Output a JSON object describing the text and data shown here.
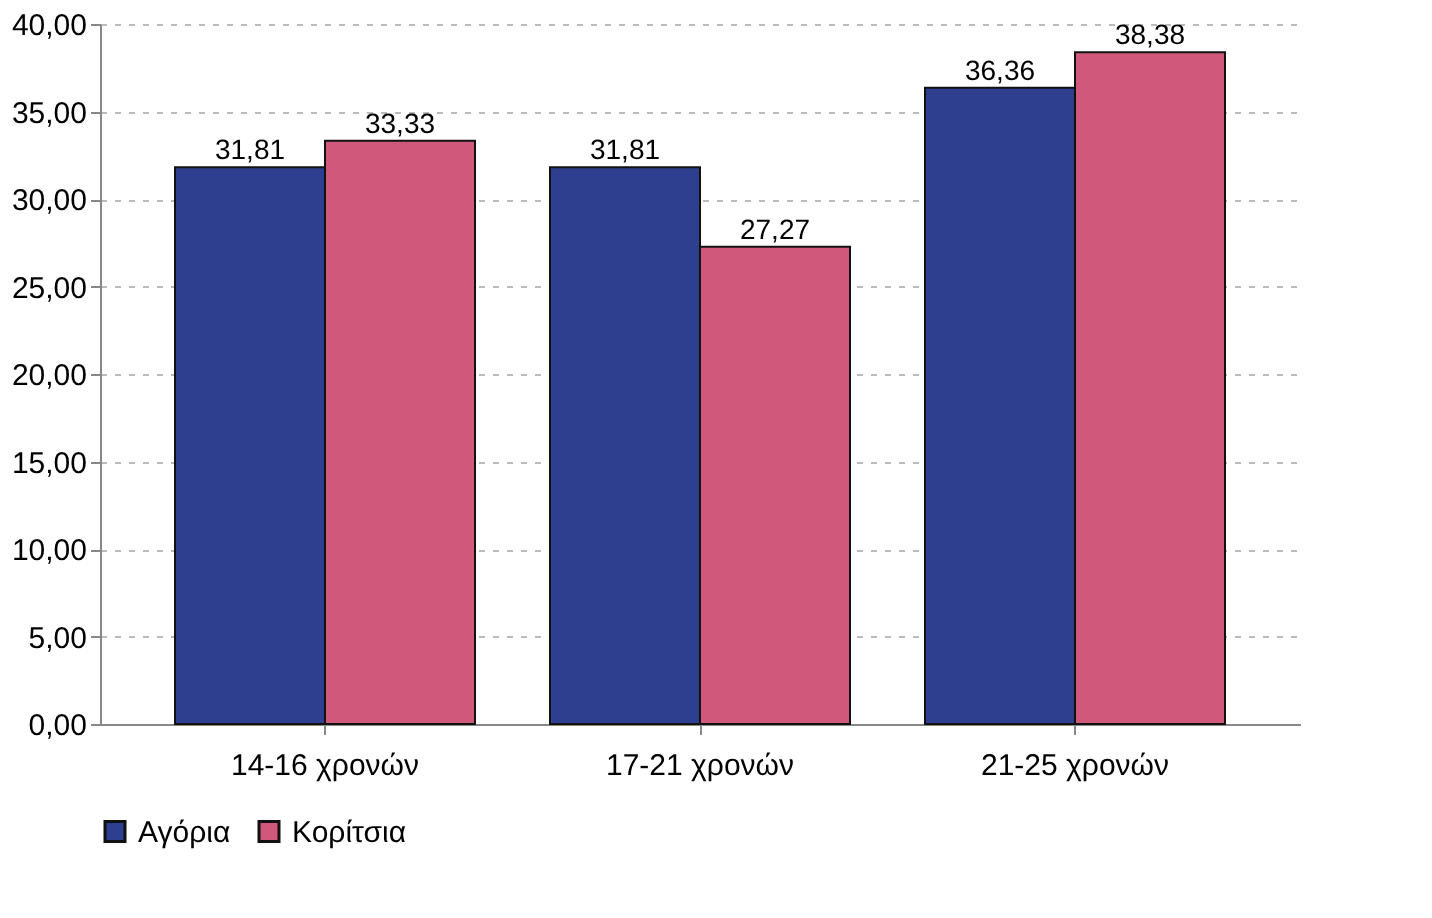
{
  "chart_data": {
    "type": "bar",
    "categories": [
      "14-16 χρονών",
      "17-21 χρονών",
      "21-25 χρονών"
    ],
    "series": [
      {
        "name": "Αγόρια",
        "color": "#2e3f8f",
        "values": [
          31.81,
          31.81,
          36.36
        ],
        "value_labels": [
          "31,81",
          "31,81",
          "36,36"
        ]
      },
      {
        "name": "Κορίτσια",
        "color": "#d0587a",
        "values": [
          33.33,
          27.27,
          38.38
        ],
        "value_labels": [
          "33,33",
          "27,27",
          "38,38"
        ]
      }
    ],
    "ylim": [
      0,
      40
    ],
    "yticks": [
      {
        "value": 0,
        "label": "0,00"
      },
      {
        "value": 5,
        "label": "5,00"
      },
      {
        "value": 10,
        "label": "10,00"
      },
      {
        "value": 15,
        "label": "15,00"
      },
      {
        "value": 20,
        "label": "20,00"
      },
      {
        "value": 25,
        "label": "25,00"
      },
      {
        "value": 30,
        "label": "30,00"
      },
      {
        "value": 35,
        "label": "35,00"
      },
      {
        "value": 40,
        "label": "40,00"
      }
    ],
    "grid": "y",
    "legend": "bottom"
  }
}
